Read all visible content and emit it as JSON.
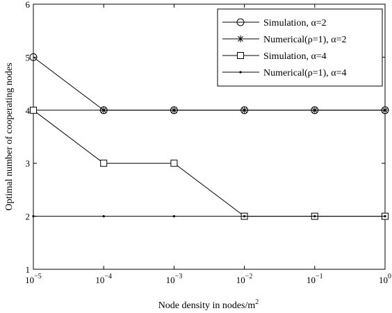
{
  "chart_data": {
    "type": "line",
    "x": [
      1e-05,
      0.0001,
      0.001,
      0.01,
      0.1,
      1
    ],
    "x_scale": "log",
    "xlim": [
      1e-05,
      1
    ],
    "ylim": [
      1,
      6
    ],
    "xlabel": "Node density in nodes/m",
    "xlabel_sup": "2",
    "ylabel": "Optimal number of cooperating nodes",
    "x_ticks": [
      {
        "base": "10",
        "exp": "−5"
      },
      {
        "base": "10",
        "exp": "−4"
      },
      {
        "base": "10",
        "exp": "−3"
      },
      {
        "base": "10",
        "exp": "−2"
      },
      {
        "base": "10",
        "exp": "−1"
      },
      {
        "base": "10",
        "exp": "0"
      }
    ],
    "y_ticks": [
      "1",
      "2",
      "3",
      "4",
      "5",
      "6"
    ],
    "y_tick_values": [
      1,
      2,
      3,
      4,
      5,
      6
    ],
    "grid": false,
    "legend_position": "top-right",
    "series": [
      {
        "name": "Simulation, α=2",
        "marker": "circle",
        "values": [
          5,
          4,
          4,
          4,
          4,
          4
        ]
      },
      {
        "name": "Numerical(ρ=1), α=2",
        "marker": "star",
        "values": [
          4,
          4,
          4,
          4,
          4,
          4
        ]
      },
      {
        "name": "Simulation, α=4",
        "marker": "square",
        "values": [
          4,
          3,
          3,
          2,
          2,
          2
        ]
      },
      {
        "name": "Numerical(ρ=1), α=4",
        "marker": "dot",
        "values": [
          2,
          2,
          2,
          2,
          2,
          2
        ]
      }
    ],
    "colors": {
      "line": "#000000",
      "background": "#ffffff"
    }
  }
}
